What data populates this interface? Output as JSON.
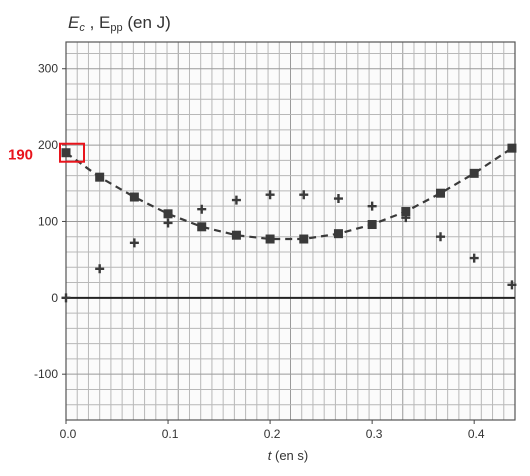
{
  "chart_data": {
    "type": "scatter",
    "y_axis_label_parts": [
      "E",
      "c",
      " , E",
      "pp",
      " (en J)"
    ],
    "x_axis_label_parts": [
      "t",
      " (en s)"
    ],
    "x_ticks": [
      "0.0",
      "0.1",
      "0.2",
      "0.3",
      "0.4"
    ],
    "y_ticks": [
      "300",
      "200",
      "100",
      "0",
      "-100"
    ],
    "xlim": [
      0,
      0.44
    ],
    "ylim": [
      -160,
      335
    ],
    "grid": true,
    "series": [
      {
        "marker": "square",
        "dashed_fit": true,
        "color": "#3a3a3a",
        "x": [
          0.0,
          0.033,
          0.067,
          0.1,
          0.133,
          0.167,
          0.2,
          0.233,
          0.267,
          0.3,
          0.333,
          0.367,
          0.4,
          0.437
        ],
        "y": [
          190,
          158,
          132,
          110,
          93,
          82,
          77,
          77,
          84,
          96,
          113,
          137,
          163,
          196
        ]
      },
      {
        "marker": "plus",
        "color": "#3a3a3a",
        "x": [
          0.0,
          0.033,
          0.067,
          0.1,
          0.133,
          0.167,
          0.2,
          0.233,
          0.267,
          0.3,
          0.333,
          0.367,
          0.4,
          0.437
        ],
        "y": [
          0,
          38,
          72,
          98,
          116,
          128,
          135,
          135,
          130,
          120,
          105,
          80,
          52,
          17
        ]
      }
    ],
    "baseline": 0,
    "annotation": {
      "text": "190",
      "value": 190,
      "color": "#e8141c"
    }
  }
}
